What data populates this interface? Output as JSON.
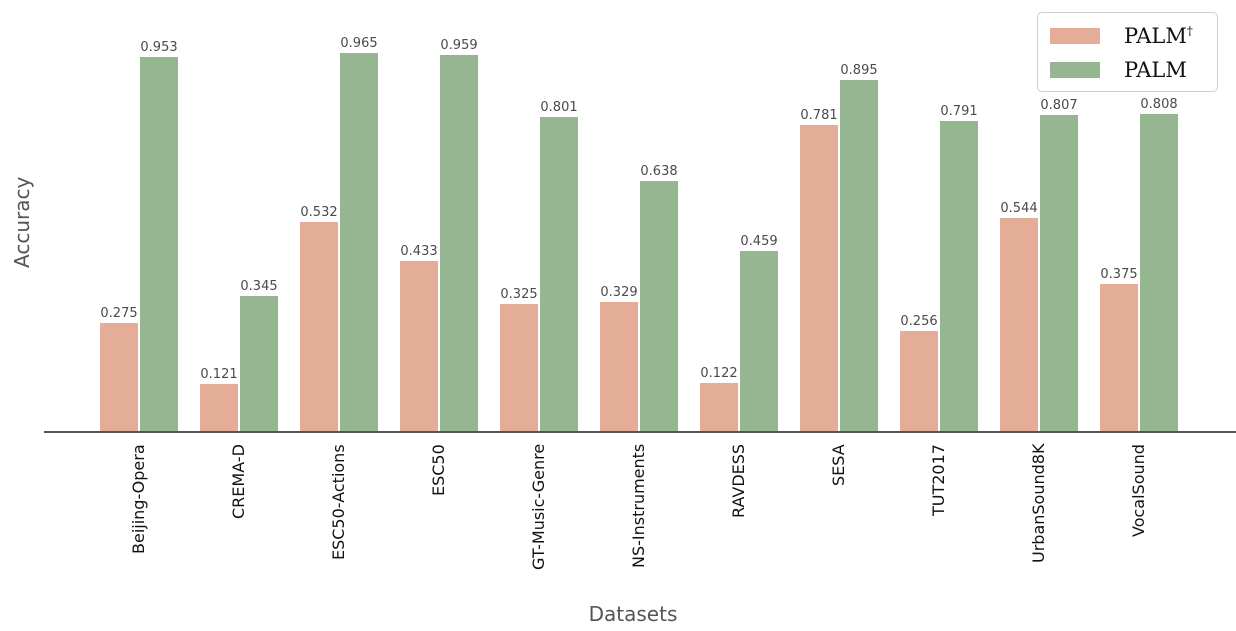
{
  "chart_data": {
    "type": "bar",
    "title": "",
    "xlabel": "Datasets",
    "ylabel": "Accuracy",
    "ylim": [
      0,
      1.0
    ],
    "grid": false,
    "legend_position": "upper right",
    "categories": [
      "Beijing-Opera",
      "CREMA-D",
      "ESC50-Actions",
      "ESC50",
      "GT-Music-Genre",
      "NS-Instruments",
      "RAVDESS",
      "SESA",
      "TUT2017",
      "UrbanSound8K",
      "VocalSound"
    ],
    "series": [
      {
        "name": "PALM†",
        "color": "#e4ad97",
        "values": [
          0.275,
          0.121,
          0.532,
          0.433,
          0.325,
          0.329,
          0.122,
          0.781,
          0.256,
          0.544,
          0.375
        ]
      },
      {
        "name": "PALM",
        "color": "#96b591",
        "values": [
          0.953,
          0.345,
          0.965,
          0.959,
          0.801,
          0.638,
          0.459,
          0.895,
          0.791,
          0.807,
          0.808
        ]
      }
    ],
    "value_labels": {
      "PALM_dagger": [
        "0.275",
        "0.121",
        "0.532",
        "0.433",
        "0.325",
        "0.329",
        "0.122",
        "0.781",
        "0.256",
        "0.544",
        "0.375"
      ],
      "PALM": [
        "0.953",
        "0.345",
        "0.965",
        "0.959",
        "0.801",
        "0.638",
        "0.459",
        "0.895",
        "0.791",
        "0.807",
        "0.808"
      ]
    }
  },
  "legend": {
    "items": [
      {
        "label": "PALM",
        "superscript": "†",
        "color": "#e4ad97"
      },
      {
        "label": "PALM",
        "superscript": "",
        "color": "#96b591"
      }
    ]
  },
  "axes": {
    "xlabel": "Datasets",
    "ylabel": "Accuracy",
    "axis_color": "#555555"
  }
}
